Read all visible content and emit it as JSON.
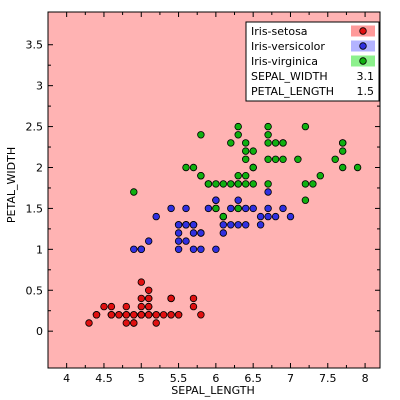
{
  "chart_data": {
    "type": "scatter",
    "xlabel": "SEPAL_LENGTH",
    "ylabel": "PETAL_WIDTH",
    "xlim": [
      3.75,
      8.2
    ],
    "ylim": [
      -0.45,
      3.9
    ],
    "xticks": [
      "4",
      "4.5",
      "5",
      "5.5",
      "6",
      "6.5",
      "7",
      "7.5",
      "8"
    ],
    "yticks": [
      "0",
      "0.5",
      "1",
      "1.5",
      "2",
      "2.5",
      "3",
      "3.5"
    ],
    "plot_background": "#ffb3b3",
    "series": [
      {
        "name": "Iris-setosa",
        "color": "#e01010",
        "legend_bg": "#ff9a9a",
        "points": [
          [
            5.1,
            0.2
          ],
          [
            4.9,
            0.2
          ],
          [
            4.7,
            0.2
          ],
          [
            4.6,
            0.2
          ],
          [
            5.0,
            0.2
          ],
          [
            5.4,
            0.4
          ],
          [
            4.6,
            0.3
          ],
          [
            5.0,
            0.2
          ],
          [
            4.4,
            0.2
          ],
          [
            4.9,
            0.1
          ],
          [
            5.4,
            0.2
          ],
          [
            4.8,
            0.2
          ],
          [
            4.8,
            0.1
          ],
          [
            4.3,
            0.1
          ],
          [
            5.8,
            0.2
          ],
          [
            5.7,
            0.4
          ],
          [
            5.4,
            0.4
          ],
          [
            5.1,
            0.3
          ],
          [
            5.7,
            0.3
          ],
          [
            5.1,
            0.3
          ],
          [
            5.4,
            0.2
          ],
          [
            5.1,
            0.4
          ],
          [
            4.6,
            0.2
          ],
          [
            5.1,
            0.5
          ],
          [
            4.8,
            0.2
          ],
          [
            5.0,
            0.2
          ],
          [
            5.0,
            0.4
          ],
          [
            5.2,
            0.2
          ],
          [
            5.2,
            0.2
          ],
          [
            4.7,
            0.2
          ],
          [
            4.8,
            0.2
          ],
          [
            5.4,
            0.4
          ],
          [
            5.2,
            0.1
          ],
          [
            5.5,
            0.2
          ],
          [
            4.9,
            0.2
          ],
          [
            5.0,
            0.2
          ],
          [
            5.5,
            0.2
          ],
          [
            4.9,
            0.1
          ],
          [
            4.4,
            0.2
          ],
          [
            5.1,
            0.2
          ],
          [
            5.0,
            0.3
          ],
          [
            4.5,
            0.3
          ],
          [
            4.4,
            0.2
          ],
          [
            5.0,
            0.6
          ],
          [
            5.1,
            0.4
          ],
          [
            4.8,
            0.3
          ],
          [
            5.1,
            0.2
          ],
          [
            4.6,
            0.2
          ],
          [
            5.3,
            0.2
          ],
          [
            5.0,
            0.2
          ]
        ]
      },
      {
        "name": "Iris-versicolor",
        "color": "#3030e0",
        "legend_bg": "#b3b3ff",
        "points": [
          [
            7.0,
            1.4
          ],
          [
            6.4,
            1.5
          ],
          [
            6.9,
            1.5
          ],
          [
            5.5,
            1.3
          ],
          [
            6.5,
            1.5
          ],
          [
            5.7,
            1.3
          ],
          [
            6.3,
            1.6
          ],
          [
            4.9,
            1.0
          ],
          [
            6.6,
            1.3
          ],
          [
            5.2,
            1.4
          ],
          [
            5.0,
            1.0
          ],
          [
            5.9,
            1.5
          ],
          [
            6.0,
            1.0
          ],
          [
            6.1,
            1.4
          ],
          [
            5.6,
            1.3
          ],
          [
            6.7,
            1.4
          ],
          [
            5.6,
            1.5
          ],
          [
            5.8,
            1.0
          ],
          [
            6.2,
            1.5
          ],
          [
            5.6,
            1.1
          ],
          [
            5.9,
            1.8
          ],
          [
            6.1,
            1.3
          ],
          [
            6.3,
            1.5
          ],
          [
            6.1,
            1.2
          ],
          [
            6.4,
            1.3
          ],
          [
            6.6,
            1.4
          ],
          [
            6.8,
            1.4
          ],
          [
            6.7,
            1.7
          ],
          [
            6.0,
            1.5
          ],
          [
            5.7,
            1.0
          ],
          [
            5.5,
            1.1
          ],
          [
            5.5,
            1.0
          ],
          [
            5.8,
            1.2
          ],
          [
            6.0,
            1.6
          ],
          [
            5.4,
            1.5
          ],
          [
            6.0,
            1.6
          ],
          [
            6.7,
            1.5
          ],
          [
            6.3,
            1.3
          ],
          [
            5.6,
            1.3
          ],
          [
            5.5,
            1.3
          ],
          [
            5.5,
            1.2
          ],
          [
            6.1,
            1.4
          ],
          [
            5.8,
            1.2
          ],
          [
            5.0,
            1.0
          ],
          [
            5.6,
            1.3
          ],
          [
            5.7,
            1.2
          ],
          [
            5.7,
            1.3
          ],
          [
            6.2,
            1.3
          ],
          [
            5.1,
            1.1
          ],
          [
            5.7,
            1.3
          ]
        ]
      },
      {
        "name": "Iris-virginica",
        "color": "#10b010",
        "legend_bg": "#8cf08c",
        "points": [
          [
            6.3,
            2.5
          ],
          [
            5.8,
            1.9
          ],
          [
            7.1,
            2.1
          ],
          [
            6.3,
            1.8
          ],
          [
            6.5,
            2.2
          ],
          [
            7.6,
            2.1
          ],
          [
            4.9,
            1.7
          ],
          [
            7.3,
            1.8
          ],
          [
            6.7,
            1.8
          ],
          [
            7.2,
            2.5
          ],
          [
            6.5,
            2.0
          ],
          [
            6.4,
            1.9
          ],
          [
            6.8,
            2.1
          ],
          [
            5.7,
            2.0
          ],
          [
            5.8,
            2.4
          ],
          [
            6.4,
            2.3
          ],
          [
            6.5,
            1.8
          ],
          [
            7.7,
            2.2
          ],
          [
            7.7,
            2.3
          ],
          [
            6.0,
            1.5
          ],
          [
            6.9,
            2.3
          ],
          [
            5.6,
            2.0
          ],
          [
            7.7,
            2.0
          ],
          [
            6.3,
            1.8
          ],
          [
            6.7,
            2.1
          ],
          [
            7.2,
            1.8
          ],
          [
            6.2,
            1.8
          ],
          [
            6.1,
            1.8
          ],
          [
            6.4,
            2.1
          ],
          [
            7.2,
            1.6
          ],
          [
            7.4,
            1.9
          ],
          [
            7.9,
            2.0
          ],
          [
            6.4,
            2.2
          ],
          [
            6.3,
            1.5
          ],
          [
            6.1,
            1.4
          ],
          [
            7.7,
            2.3
          ],
          [
            6.3,
            2.4
          ],
          [
            6.4,
            1.8
          ],
          [
            6.0,
            1.8
          ],
          [
            6.9,
            2.1
          ],
          [
            6.7,
            2.4
          ],
          [
            6.9,
            2.3
          ],
          [
            5.8,
            1.9
          ],
          [
            6.8,
            2.3
          ],
          [
            6.7,
            2.5
          ],
          [
            6.7,
            2.3
          ],
          [
            6.3,
            1.9
          ],
          [
            6.5,
            2.0
          ],
          [
            6.2,
            2.3
          ],
          [
            5.9,
            1.8
          ]
        ]
      }
    ],
    "legend": {
      "position": "top-right",
      "extra": [
        {
          "label": "SEPAL_WIDTH",
          "value": "3.1"
        },
        {
          "label": "PETAL_LENGTH",
          "value": "1.5"
        }
      ]
    }
  }
}
